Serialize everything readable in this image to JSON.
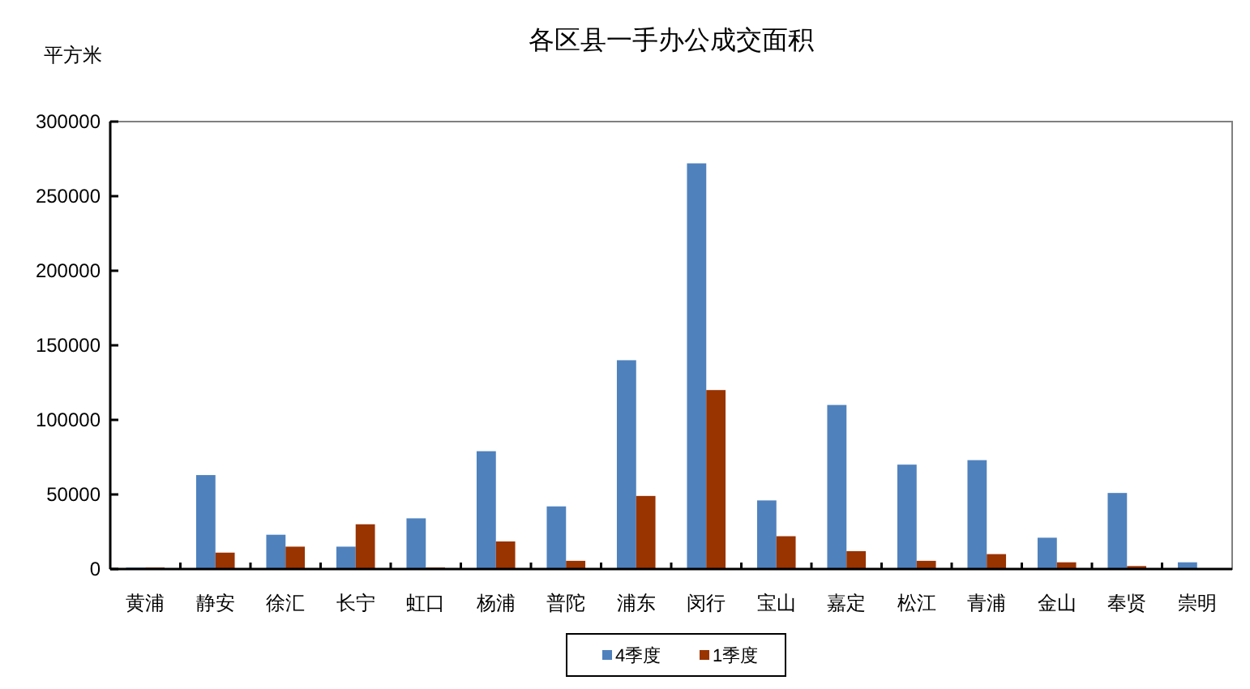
{
  "chart_data": {
    "type": "bar",
    "title": "各区县一手办公成交面积",
    "ylabel": "平方米",
    "categories": [
      "黄浦",
      "静安",
      "徐汇",
      "长宁",
      "虹口",
      "杨浦",
      "普陀",
      "浦东",
      "闵行",
      "宝山",
      "嘉定",
      "松江",
      "青浦",
      "金山",
      "奉贤",
      "崇明"
    ],
    "series": [
      {
        "name": "4季度",
        "color": "#4f81bd",
        "values": [
          1000,
          63000,
          23000,
          15000,
          34000,
          79000,
          42000,
          140000,
          272000,
          46000,
          110000,
          70000,
          73000,
          21000,
          51000,
          4500
        ]
      },
      {
        "name": "1季度",
        "color": "#993300",
        "values": [
          1000,
          11000,
          15000,
          30000,
          1000,
          18500,
          5500,
          49000,
          120000,
          22000,
          12000,
          5500,
          10000,
          4500,
          2000,
          0
        ]
      }
    ],
    "ylim": [
      0,
      300000
    ],
    "yticks": [
      0,
      50000,
      100000,
      150000,
      200000,
      250000,
      300000
    ],
    "grid": false,
    "legend": "bottom"
  }
}
